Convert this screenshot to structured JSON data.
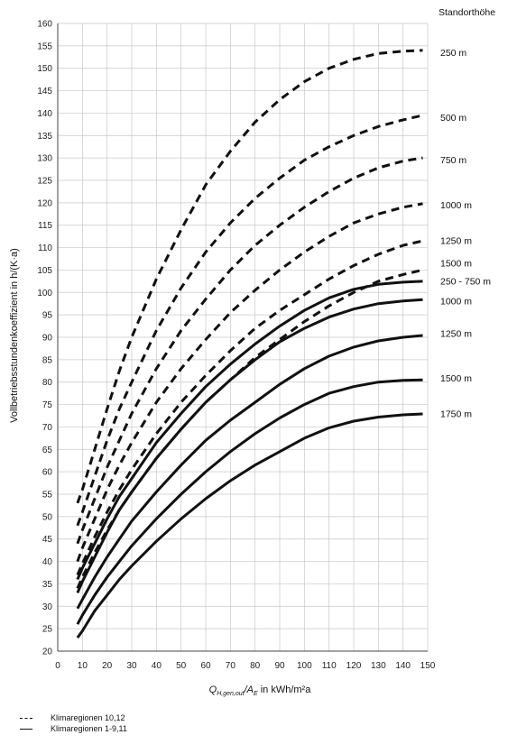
{
  "chart_data": {
    "type": "line",
    "title": "",
    "xlabel": "Q_H,gen,out/A_E in kWh/m²a",
    "xlabel_parts": {
      "q": "Q",
      "sub": "H,gen,out",
      "ae": "/A",
      "ae_sub": "E",
      "rest": " in kWh/m²a"
    },
    "ylabel": "Vollbetriebsstundenkoeffizient in h/(K·a)",
    "xlim": [
      0,
      150
    ],
    "ylim": [
      20,
      160
    ],
    "xticks": [
      0,
      10,
      20,
      30,
      40,
      50,
      60,
      70,
      80,
      90,
      100,
      110,
      120,
      130,
      140,
      150
    ],
    "yticks": [
      20,
      25,
      30,
      35,
      40,
      45,
      50,
      55,
      60,
      65,
      70,
      75,
      80,
      85,
      90,
      95,
      100,
      105,
      110,
      115,
      120,
      125,
      130,
      135,
      140,
      145,
      150,
      155,
      160
    ],
    "grid": true,
    "legend_title": "Standorthöhe",
    "x": [
      8,
      10,
      15,
      20,
      25,
      30,
      40,
      50,
      60,
      70,
      80,
      90,
      100,
      110,
      120,
      130,
      140,
      148
    ],
    "series": [
      {
        "name": "250 m",
        "group": "Klimaregionen 10,12",
        "style": "dashed",
        "values": [
          53,
          56,
          65,
          74,
          82.5,
          90,
          103,
          114,
          124,
          131.5,
          138,
          143,
          147,
          150,
          152,
          153.3,
          153.8,
          154
        ]
      },
      {
        "name": "500 m",
        "group": "Klimaregionen 10,12",
        "style": "dashed",
        "values": [
          48,
          51,
          59,
          67,
          74,
          80,
          91.5,
          101,
          109,
          115.5,
          121,
          125.5,
          129.5,
          132.5,
          135,
          137,
          138.5,
          139.5
        ]
      },
      {
        "name": "750 m",
        "group": "Klimaregionen 10,12",
        "style": "dashed",
        "values": [
          44,
          47,
          54,
          61,
          67,
          73,
          83,
          91.5,
          98.5,
          105,
          110.5,
          115,
          119,
          122.5,
          125.5,
          127.8,
          129.3,
          130
        ]
      },
      {
        "name": "1000 m",
        "group": "Klimaregionen 10,12",
        "style": "dashed",
        "values": [
          40,
          43,
          49.5,
          56,
          61.5,
          66.5,
          75.5,
          83,
          89.5,
          95.5,
          100.5,
          105,
          109,
          112.5,
          115.5,
          117.5,
          119,
          119.8
        ]
      },
      {
        "name": "1250 m",
        "group": "Klimaregionen 10,12",
        "style": "dashed",
        "values": [
          37,
          39.5,
          45.5,
          51,
          56,
          60.5,
          68.5,
          75.5,
          81.5,
          87,
          92,
          96,
          99.5,
          103,
          106,
          108.5,
          110.5,
          111.5
        ]
      },
      {
        "name": "1500 m",
        "group": "Klimaregionen 10,12",
        "style": "dashed",
        "values": [
          34,
          36.5,
          42,
          47,
          51.5,
          55.5,
          63,
          69.5,
          75.5,
          80.5,
          85.5,
          89.5,
          93.5,
          97,
          100,
          102.5,
          104,
          105
        ]
      },
      {
        "name": "250 - 750 m",
        "group": "Klimaregionen 1-9,11",
        "style": "solid",
        "values": [
          36,
          38.5,
          44,
          49.5,
          54.5,
          58.5,
          66.5,
          73,
          79,
          84,
          88.5,
          92.5,
          96,
          98.8,
          100.7,
          101.8,
          102.3,
          102.5
        ]
      },
      {
        "name": "1000 m",
        "group": "Klimaregionen 1-9,11",
        "style": "solid",
        "values": [
          33,
          35.5,
          41,
          46.5,
          51.5,
          55.5,
          63,
          69.5,
          75.5,
          80.5,
          85,
          89,
          92,
          94.5,
          96.3,
          97.5,
          98.1,
          98.4
        ]
      },
      {
        "name": "1250 m",
        "group": "Klimaregionen 1-9,11",
        "style": "solid",
        "values": [
          29.5,
          31.5,
          36.5,
          41,
          45,
          49,
          55.5,
          61.5,
          67,
          71.5,
          75.5,
          79.5,
          83,
          85.8,
          87.8,
          89.2,
          90,
          90.4
        ]
      },
      {
        "name": "1500 m",
        "group": "Klimaregionen 1-9,11",
        "style": "solid",
        "values": [
          26,
          28,
          32.5,
          36.5,
          40,
          43.5,
          49.5,
          55,
          60,
          64.5,
          68.5,
          72,
          75,
          77.5,
          79,
          80,
          80.4,
          80.5
        ]
      },
      {
        "name": "1750 m",
        "group": "Klimaregionen 1-9,11",
        "style": "solid",
        "values": [
          23,
          24.5,
          29,
          32.5,
          36,
          39,
          44.5,
          49.5,
          54,
          58,
          61.5,
          64.5,
          67.5,
          69.8,
          71.3,
          72.2,
          72.7,
          72.9
        ]
      }
    ],
    "series_labels": [
      {
        "text": "250 m",
        "y": 153.5
      },
      {
        "text": "500 m",
        "y": 139
      },
      {
        "text": "750 m",
        "y": 129.5
      },
      {
        "text": "1000 m",
        "y": 119.5
      },
      {
        "text": "1250 m",
        "y": 111.5
      },
      {
        "text": "1500 m",
        "y": 106.5
      },
      {
        "text": "250 - 750 m",
        "y": 102.5
      },
      {
        "text": "1000 m",
        "y": 98
      },
      {
        "text": "1250 m",
        "y": 90.8
      },
      {
        "text": "1500 m",
        "y": 80.8
      },
      {
        "text": "1750 m",
        "y": 72.9
      }
    ],
    "legend": [
      {
        "style": "dashed",
        "label": "Klimaregionen 10,12"
      },
      {
        "style": "solid",
        "label": "Klimaregionen 1-9,11"
      }
    ]
  }
}
